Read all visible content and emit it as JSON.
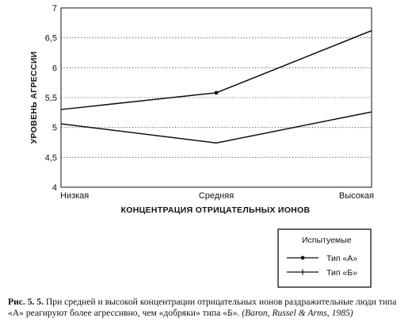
{
  "chart_data": {
    "type": "line",
    "categories": [
      "Низкая",
      "Средняя",
      "Высокая"
    ],
    "series": [
      {
        "name": "Тип «А»",
        "values": [
          5.3,
          5.58,
          6.62
        ],
        "color": "#111111",
        "marker": "dot"
      },
      {
        "name": "Тип «Б»",
        "values": [
          5.06,
          4.74,
          5.26
        ],
        "color": "#111111",
        "marker": "plus"
      }
    ],
    "xlabel": "КОНЦЕНТРАЦИЯ ОТРИЦАТЕЛЬНЫХ ИОНОВ",
    "ylabel": "УРОВЕНЬ АГРЕССИИ",
    "ylim": [
      4,
      7
    ],
    "yticks": [
      4,
      4.5,
      5,
      5.5,
      6,
      6.5,
      7
    ],
    "ytick_labels": [
      "4",
      "4,5",
      "5",
      "5,5",
      "6",
      "6,5",
      "7"
    ],
    "grid": "horizontal dotted",
    "legend": {
      "title": "Испытуемые",
      "placement": "bottom-right outside"
    }
  },
  "caption": {
    "label": "Рис. 5. 5.",
    "text": "При средней и высокой концентрации отрицательных ионов раздражительные люди типа «А» реагируют более агрессивно, чем «добряки» типа «Б».",
    "source": "(Baron, Russel & Arms, 1985)"
  }
}
